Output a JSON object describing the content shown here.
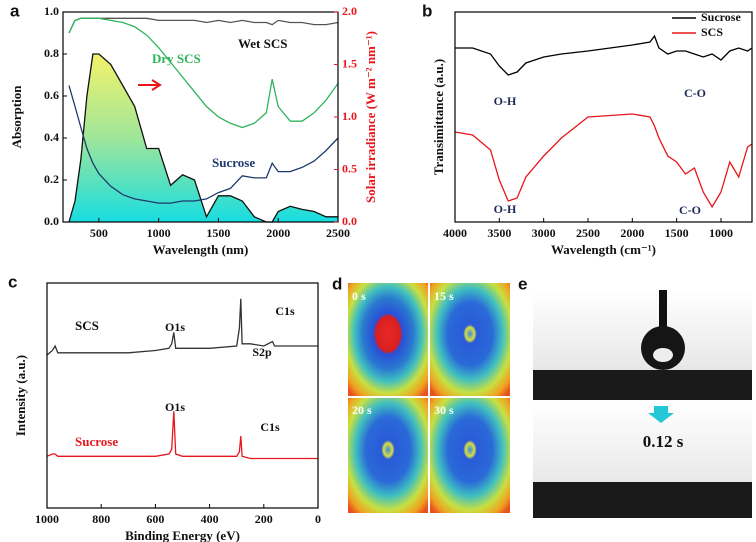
{
  "chart_data": [
    {
      "type": "line",
      "panel_label": "a",
      "xlabel": "Wavelength (nm)",
      "ylabel": "Absorption",
      "y2label": "Solar irradiance (W m⁻² nm⁻¹)",
      "y2color": "#e8161b",
      "xlim": [
        200,
        2500
      ],
      "xticks": [
        500,
        1000,
        1500,
        2000,
        2500
      ],
      "ylim": [
        0,
        1.0
      ],
      "yticks": [
        {
          "value": 0,
          "label": "0.0"
        },
        0.2,
        0.4,
        0.6,
        0.8,
        {
          "value": 1,
          "label": "1.0"
        }
      ],
      "y2lim": [
        0,
        2.0
      ],
      "y2ticks": [
        {
          "value": 0,
          "label": "0.0"
        },
        0.5,
        {
          "value": 1,
          "label": "1.0"
        },
        1.5,
        {
          "value": 2,
          "label": "2.0"
        }
      ],
      "x": [
        250,
        300,
        350,
        400,
        450,
        500,
        600,
        700,
        800,
        900,
        1000,
        1100,
        1200,
        1300,
        1400,
        1500,
        1600,
        1700,
        1800,
        1900,
        1950,
        2000,
        2100,
        2200,
        2300,
        2400,
        2500
      ],
      "series": [
        {
          "name": "Solar irradiance",
          "axis": "y2",
          "fill": true,
          "color": "#111111",
          "values": [
            0,
            0.2,
            0.6,
            1.2,
            1.6,
            1.6,
            1.5,
            1.3,
            1.1,
            0.7,
            0.7,
            0.35,
            0.45,
            0.4,
            0.05,
            0.25,
            0.25,
            0.2,
            0.05,
            0,
            0,
            0.1,
            0.15,
            0.12,
            0.1,
            0.05,
            0.05
          ]
        },
        {
          "name": "Wet SCS",
          "color": "#555555",
          "values": [
            0.9,
            0.96,
            0.97,
            0.97,
            0.97,
            0.97,
            0.97,
            0.97,
            0.97,
            0.97,
            0.96,
            0.96,
            0.96,
            0.96,
            0.95,
            0.96,
            0.95,
            0.96,
            0.95,
            0.95,
            0.94,
            0.96,
            0.95,
            0.95,
            0.94,
            0.94,
            0.95
          ]
        },
        {
          "name": "Dry SCS",
          "color": "#2fb45a",
          "values": [
            0.9,
            0.96,
            0.97,
            0.97,
            0.97,
            0.97,
            0.96,
            0.95,
            0.93,
            0.89,
            0.83,
            0.76,
            0.69,
            0.62,
            0.55,
            0.5,
            0.47,
            0.45,
            0.47,
            0.52,
            0.68,
            0.55,
            0.48,
            0.48,
            0.52,
            0.58,
            0.66
          ]
        },
        {
          "name": "Sucrose",
          "color": "#1e3a6e",
          "values": [
            0.65,
            0.55,
            0.45,
            0.35,
            0.28,
            0.23,
            0.17,
            0.13,
            0.11,
            0.1,
            0.09,
            0.09,
            0.1,
            0.1,
            0.11,
            0.14,
            0.16,
            0.22,
            0.21,
            0.21,
            0.28,
            0.24,
            0.24,
            0.26,
            0.29,
            0.34,
            0.4
          ]
        }
      ]
    },
    {
      "type": "line",
      "panel_label": "b",
      "xlabel": "Wavelength (cm⁻¹)",
      "ylabel": "Transimittance (a.u.)",
      "xlim": [
        4000,
        650
      ],
      "xticks": [
        4000,
        3500,
        3000,
        2500,
        2000,
        1500,
        1000
      ],
      "ylim": [
        0.2,
        0.9
      ],
      "legend": "upper right",
      "annotations": [
        "O-H",
        "C-O",
        "O-H",
        "C-O"
      ],
      "x": [
        4000,
        3800,
        3600,
        3500,
        3400,
        3300,
        3200,
        3000,
        2800,
        2500,
        2000,
        1800,
        1750,
        1700,
        1600,
        1500,
        1400,
        1300,
        1200,
        1100,
        1000,
        900,
        800,
        700,
        650
      ],
      "series": [
        {
          "name": "Sucrose",
          "color": "#000000",
          "values": [
            0.78,
            0.78,
            0.76,
            0.72,
            0.69,
            0.7,
            0.73,
            0.75,
            0.76,
            0.77,
            0.79,
            0.8,
            0.82,
            0.78,
            0.76,
            0.77,
            0.77,
            0.76,
            0.75,
            0.76,
            0.74,
            0.77,
            0.78,
            0.77,
            0.78
          ]
        },
        {
          "name": "SCS",
          "color": "#e8161b",
          "values": [
            0.5,
            0.49,
            0.44,
            0.34,
            0.27,
            0.28,
            0.35,
            0.42,
            0.48,
            0.55,
            0.56,
            0.55,
            0.52,
            0.48,
            0.42,
            0.4,
            0.36,
            0.38,
            0.3,
            0.25,
            0.3,
            0.4,
            0.35,
            0.45,
            0.46
          ]
        }
      ]
    },
    {
      "type": "line",
      "panel_label": "c",
      "xlabel": "Binding Energy (eV)",
      "ylabel": "Intensity (a.u.)",
      "xlim": [
        1000,
        0
      ],
      "xticks": [
        1000,
        800,
        600,
        400,
        200,
        0
      ],
      "ylim": [
        0,
        1
      ],
      "annotations": [
        "O1s",
        "C1s",
        "S2p",
        "O1s",
        "C1s"
      ],
      "x": [
        1000,
        980,
        970,
        960,
        900,
        800,
        700,
        600,
        550,
        540,
        532,
        525,
        500,
        400,
        300,
        290,
        285,
        280,
        250,
        200,
        168,
        160,
        100,
        0
      ],
      "series": [
        {
          "name": "SCS",
          "color": "#333333",
          "values": [
            0.68,
            0.7,
            0.72,
            0.69,
            0.69,
            0.69,
            0.69,
            0.7,
            0.71,
            0.73,
            0.78,
            0.71,
            0.71,
            0.71,
            0.72,
            0.8,
            0.93,
            0.73,
            0.73,
            0.72,
            0.74,
            0.72,
            0.72,
            0.72
          ]
        },
        {
          "name": "Sucrose",
          "color": "#e8161b",
          "values": [
            0.23,
            0.24,
            0.24,
            0.23,
            0.23,
            0.23,
            0.23,
            0.23,
            0.24,
            0.26,
            0.43,
            0.24,
            0.23,
            0.23,
            0.23,
            0.25,
            0.32,
            0.23,
            0.22,
            0.22,
            0.22,
            0.22,
            0.22,
            0.22
          ]
        }
      ]
    }
  ],
  "images": {
    "d": {
      "panel_label": "d",
      "frames": [
        "0 s",
        "15 s",
        "20 s",
        "30 s"
      ]
    },
    "e": {
      "panel_label": "e",
      "caption": "0.12 s"
    }
  }
}
